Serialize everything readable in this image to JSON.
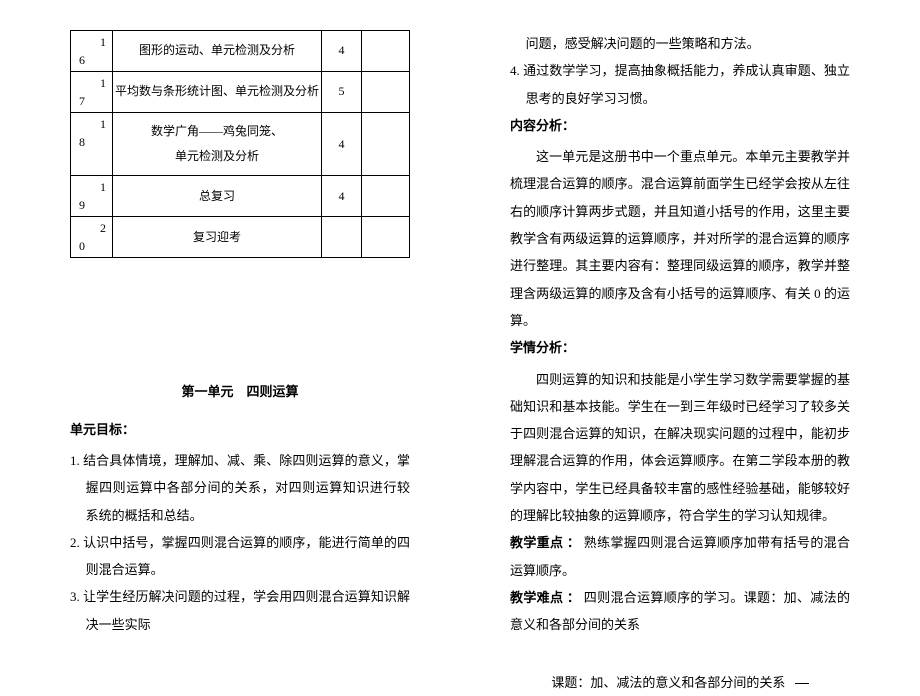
{
  "table": {
    "rows": [
      {
        "idx_hi": "1",
        "idx_lo": "6",
        "desc": "图形的运动、单元检测及分析",
        "hours": "4"
      },
      {
        "idx_hi": "1",
        "idx_lo": "7",
        "desc": "平均数与条形统计图、单元检测及分析",
        "hours": "5"
      },
      {
        "idx_hi": "1",
        "idx_lo": "8",
        "desc": "数学广角——鸡兔同笼、\n单元检测及分析",
        "hours": "4"
      },
      {
        "idx_hi": "1",
        "idx_lo": "9",
        "desc": "总复习",
        "hours": "4"
      },
      {
        "idx_hi": "2",
        "idx_lo": "0",
        "desc": "复习迎考",
        "hours": ""
      }
    ]
  },
  "left": {
    "unit_title": "第一单元　四则运算",
    "goal_heading": "单元目标：",
    "goals": [
      "1. 结合具体情境，理解加、减、乘、除四则运算的意义，掌握四则运算中各部分间的关系，对四则运算知识进行较系统的概括和总结。",
      "2. 认识中括号，掌握四则混合运算的顺序，能进行简单的四则混合运算。",
      "3. 让学生经历解决问题的过程，学会用四则混合运算知识解决一些实际"
    ]
  },
  "right": {
    "cont1": "问题，感受解决问题的一些策略和方法。",
    "cont2": "4. 通过数学学习，提高抽象概括能力，养成认真审题、独立思考的良好学习习惯。",
    "content_heading": "内容分析：",
    "content_body": "这一单元是这册书中一个重点单元。本单元主要教学并梳理混合运算的顺序。混合运算前面学生已经学会按从左往右的顺序计算两步式题，并且知道小括号的作用，这里主要教学含有两级运算的运算顺序，并对所学的混合运算的顺序进行整理。其主要内容有：整理同级运算的顺序，教学并整理含两级运算的顺序及含有小括号的运算顺序、有关 0 的运算。",
    "learner_heading": "学情分析：",
    "learner_body": "四则运算的知识和技能是小学生学习数学需要掌握的基础知识和基本技能。学生在一到三年级时已经学习了较多关于四则混合运算的知识，在解决现实问题的过程中，能初步理解混合运算的作用，体会运算顺序。在第二学段本册的教学内容中，学生已经具备较丰富的感性经验基础，能够较好的理解比较抽象的运算顺序，符合学生的学习认知规律。",
    "focus_label": "教学重点 ：",
    "focus_body": "熟练掌握四则混合运算顺序加带有括号的混合运算顺序。",
    "hard_label": "教学难点 ：",
    "hard_body": "四则混合运算顺序的学习。课题：加、减法的意义和各部分间的关系",
    "lesson_title": "课题：加、减法的意义和各部分间的关系"
  }
}
